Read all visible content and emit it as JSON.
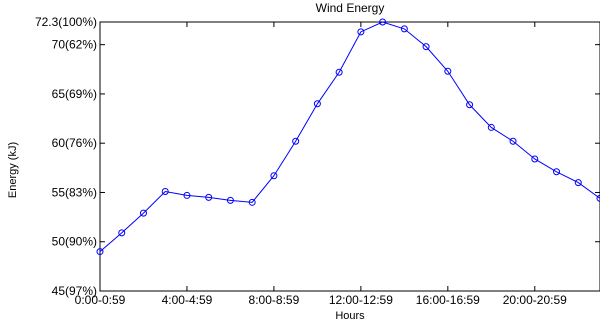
{
  "chart_data": {
    "type": "line",
    "title": "Wind Energy",
    "xlabel": "Hours",
    "ylabel": "Energy (kJ)",
    "x": [
      0,
      1,
      2,
      3,
      4,
      5,
      6,
      7,
      8,
      9,
      10,
      11,
      12,
      13,
      14,
      15,
      16,
      17,
      18,
      19,
      20,
      21,
      22,
      23
    ],
    "series": [
      {
        "values": [
          49.0,
          50.9,
          52.9,
          55.1,
          54.7,
          54.5,
          54.2,
          54.0,
          56.7,
          60.2,
          64.0,
          67.2,
          71.3,
          72.3,
          71.6,
          69.8,
          67.3,
          63.9,
          61.6,
          60.2,
          58.4,
          57.1,
          56.0,
          54.4
        ]
      }
    ],
    "xticks": [
      {
        "pos": 0,
        "label": "0:00-0:59"
      },
      {
        "pos": 4,
        "label": "4:00-4:59"
      },
      {
        "pos": 8,
        "label": "8:00-8:59"
      },
      {
        "pos": 12,
        "label": "12:00-12:59"
      },
      {
        "pos": 16,
        "label": "16:00-16:59"
      },
      {
        "pos": 20,
        "label": "20:00-20:59"
      }
    ],
    "yticks": [
      {
        "value": 45,
        "label": "45(97%)"
      },
      {
        "value": 50,
        "label": "50(90%)"
      },
      {
        "value": 55,
        "label": "55(83%)"
      },
      {
        "value": 60,
        "label": "60(76%)"
      },
      {
        "value": 65,
        "label": "65(69%)"
      },
      {
        "value": 70,
        "label": "70(62%)"
      },
      {
        "value": 72.3,
        "label": "72.3(100%)"
      }
    ],
    "xlim": [
      0,
      23
    ],
    "ylim": [
      45,
      72.3
    ],
    "grid": false,
    "legend": "none",
    "line_color": "#0000ff"
  }
}
